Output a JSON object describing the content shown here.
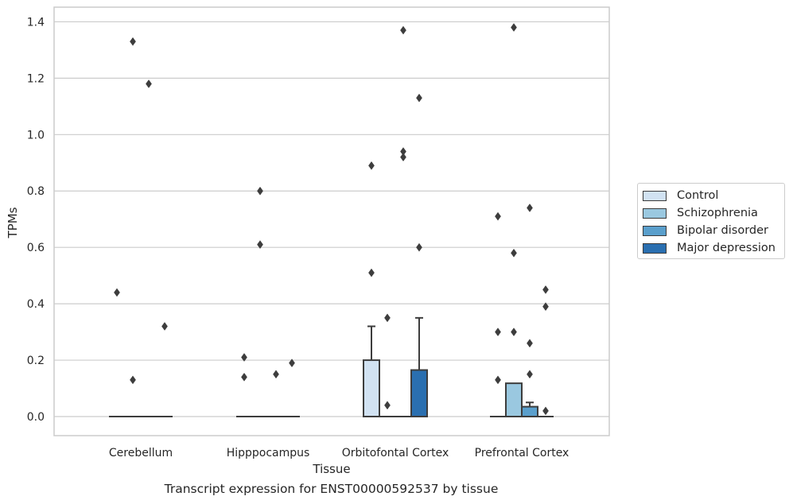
{
  "chart_data": {
    "type": "box",
    "caption": "Transcript expression for ENST00000592537 by tissue",
    "xlabel": "Tissue",
    "ylabel": "TPMs",
    "ylim": [
      -0.068,
      1.45
    ],
    "yticks": [
      "0.0",
      "0.2",
      "0.4",
      "0.6",
      "0.8",
      "1.0",
      "1.2",
      "1.4"
    ],
    "ytick_values": [
      0,
      0.2,
      0.4,
      0.6,
      0.8,
      1.0,
      1.2,
      1.4
    ],
    "grid": "horizontal",
    "legend_position": "outside-right",
    "categories": [
      "Cerebellum",
      "Hipppocampus",
      "Orbitofontal Cortex",
      "Prefrontal Cortex"
    ],
    "series": [
      {
        "name": "Control",
        "color": "#d1e2f2",
        "boxes": [
          {
            "q1": 0,
            "median": 0,
            "q3": 0,
            "whisker_low": 0,
            "whisker_high": 0,
            "outliers": [
              0.44
            ]
          },
          {
            "q1": 0,
            "median": 0,
            "q3": 0,
            "whisker_low": 0,
            "whisker_high": 0,
            "outliers": [
              0.21,
              0.14
            ]
          },
          {
            "q1": 0,
            "median": 0,
            "q3": 0.2,
            "whisker_low": 0,
            "whisker_high": 0.32,
            "outliers": [
              0.89,
              0.51
            ]
          },
          {
            "q1": 0,
            "median": 0,
            "q3": 0,
            "whisker_low": 0,
            "whisker_high": 0,
            "outliers": [
              0.71,
              0.3,
              0.13
            ]
          }
        ]
      },
      {
        "name": "Schizophrenia",
        "color": "#9ac8e0",
        "boxes": [
          {
            "q1": 0,
            "median": 0,
            "q3": 0,
            "whisker_low": 0,
            "whisker_high": 0,
            "outliers": [
              1.33,
              0.13
            ]
          },
          {
            "q1": 0,
            "median": 0,
            "q3": 0,
            "whisker_low": 0,
            "whisker_high": 0,
            "outliers": [
              0.8,
              0.61
            ]
          },
          {
            "q1": 0,
            "median": 0,
            "q3": 0,
            "whisker_low": 0,
            "whisker_high": 0,
            "outliers": [
              0.35,
              0.04
            ]
          },
          {
            "q1": 0,
            "median": 0,
            "q3": 0.118,
            "whisker_low": 0,
            "whisker_high": 0.118,
            "outliers": [
              1.38,
              0.58,
              0.3
            ]
          }
        ]
      },
      {
        "name": "Bipolar disorder",
        "color": "#5a9fcc",
        "boxes": [
          {
            "q1": 0,
            "median": 0,
            "q3": 0,
            "whisker_low": 0,
            "whisker_high": 0,
            "outliers": [
              1.18
            ]
          },
          {
            "q1": 0,
            "median": 0,
            "q3": 0,
            "whisker_low": 0,
            "whisker_high": 0,
            "outliers": [
              0.15
            ]
          },
          {
            "q1": 0,
            "median": 0,
            "q3": 0,
            "whisker_low": 0,
            "whisker_high": 0,
            "outliers": [
              1.37,
              0.94,
              0.92
            ]
          },
          {
            "q1": 0,
            "median": 0,
            "q3": 0.035,
            "whisker_low": 0,
            "whisker_high": 0.05,
            "outliers": [
              0.74,
              0.26,
              0.15
            ]
          }
        ]
      },
      {
        "name": "Major depression",
        "color": "#2a6fb0",
        "boxes": [
          {
            "q1": 0,
            "median": 0,
            "q3": 0,
            "whisker_low": 0,
            "whisker_high": 0,
            "outliers": [
              0.32
            ]
          },
          {
            "q1": 0,
            "median": 0,
            "q3": 0,
            "whisker_low": 0,
            "whisker_high": 0,
            "outliers": [
              0.19
            ]
          },
          {
            "q1": 0,
            "median": 0,
            "q3": 0.165,
            "whisker_low": 0,
            "whisker_high": 0.35,
            "outliers": [
              1.13,
              0.6
            ]
          },
          {
            "q1": 0,
            "median": 0,
            "q3": 0,
            "whisker_low": 0,
            "whisker_high": 0,
            "outliers": [
              0.45,
              0.39,
              0.02
            ]
          }
        ]
      }
    ]
  }
}
